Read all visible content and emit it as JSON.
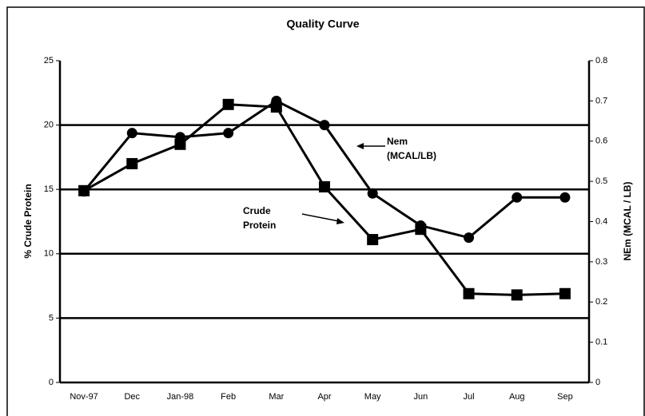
{
  "chart_data": {
    "type": "line",
    "title": "Quality Curve",
    "y_label": "% Crude Protein",
    "y2_label": "NEm (MCAL / LB)",
    "categories": [
      "Nov-97",
      "Dec",
      "Jan-98",
      "Feb",
      "Mar",
      "Apr",
      "May",
      "Jun",
      "Jul",
      "Aug",
      "Sep"
    ],
    "series": [
      {
        "name": "Crude Protein",
        "color": "#000000",
        "marker": "square",
        "values": [
          14.9,
          17.0,
          18.5,
          21.6,
          21.4,
          15.2,
          11.1,
          11.9,
          6.9,
          6.8,
          6.9
        ]
      },
      {
        "name": "Nem",
        "color": "#000000",
        "marker": "circle",
        "axis": "y2",
        "values": [
          0.475,
          0.62,
          0.61,
          0.62,
          0.7,
          0.64,
          0.47,
          0.39,
          0.36,
          0.46,
          0.46
        ]
      }
    ],
    "ylim": [
      0,
      25
    ],
    "yticks": [
      0,
      5,
      10,
      15,
      20,
      25
    ],
    "y2lim": [
      0,
      0.8
    ],
    "y2ticks": [
      0,
      0.1,
      0.2,
      0.3,
      0.4,
      0.5,
      0.6,
      0.7,
      0.8
    ],
    "grid": true,
    "annotations": [
      {
        "lines": [
          "Nem",
          "(MCAL/LB)"
        ]
      },
      {
        "lines": [
          "Crude",
          "Protein"
        ]
      }
    ]
  }
}
